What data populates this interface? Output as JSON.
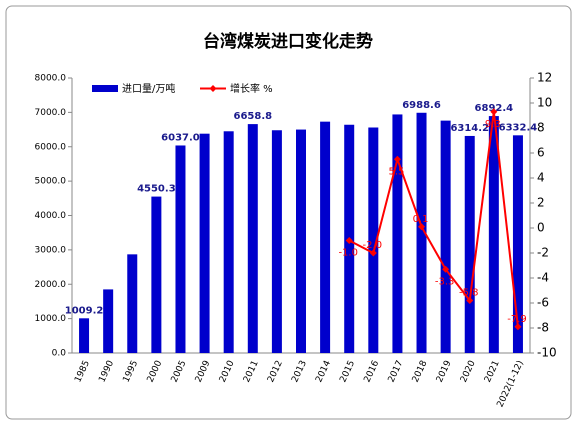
{
  "chart_data": {
    "type": "bar_line",
    "title": "台湾煤炭进口变化走势",
    "categories": [
      "1985",
      "1990",
      "1995",
      "2000",
      "2005",
      "2009",
      "2010",
      "2011",
      "2012",
      "2013",
      "2014",
      "2015",
      "2016",
      "2017",
      "2018",
      "2019",
      "2020",
      "2021",
      "2022(1-12)"
    ],
    "series": [
      {
        "name": "进口量/万吨",
        "type": "bar",
        "color": "#0000cc",
        "values": [
          1009.2,
          1850,
          2870,
          4550.3,
          6037.0,
          6380,
          6450,
          6658.8,
          6480,
          6500,
          6730,
          6640,
          6560,
          6940,
          6988.6,
          6760,
          6314.2,
          6892.4,
          6332.4
        ],
        "value_labels": [
          "1009.2",
          null,
          null,
          "4550.3",
          "6037.0",
          null,
          null,
          "6658.8",
          null,
          null,
          null,
          null,
          null,
          null,
          "6988.6",
          null,
          "6314.2",
          "6892.4",
          "6332.4"
        ]
      },
      {
        "name": "增长率 %",
        "type": "line",
        "axis": "y2",
        "color": "#ff0000",
        "values": [
          null,
          null,
          null,
          null,
          null,
          null,
          null,
          null,
          null,
          null,
          null,
          -1.0,
          -2.0,
          5.5,
          0.1,
          -3.3,
          -5.8,
          9.3,
          -7.9
        ],
        "value_labels": [
          null,
          null,
          null,
          null,
          null,
          null,
          null,
          null,
          null,
          null,
          null,
          "-1.0",
          "-2.0",
          "5.5",
          "0.1",
          "-3.3",
          "-5.8",
          "9.3",
          "-7.9"
        ]
      }
    ],
    "ylim": [
      0,
      8000
    ],
    "yticks": [
      {
        "value": 0,
        "label": "0.0"
      },
      {
        "value": 1000,
        "label": "1000.0"
      },
      {
        "value": 2000,
        "label": "2000.0"
      },
      {
        "value": 3000,
        "label": "3000.0"
      },
      {
        "value": 4000,
        "label": "4000.0"
      },
      {
        "value": 5000,
        "label": "5000.0"
      },
      {
        "value": 6000,
        "label": "6000.0"
      },
      {
        "value": 7000,
        "label": "7000.0"
      },
      {
        "value": 8000,
        "label": "8000.0"
      }
    ],
    "y2lim": [
      -10,
      12
    ],
    "y2ticks": [
      -10,
      -8,
      -6,
      -4,
      -2,
      0,
      2,
      4,
      6,
      8,
      10,
      12
    ]
  }
}
